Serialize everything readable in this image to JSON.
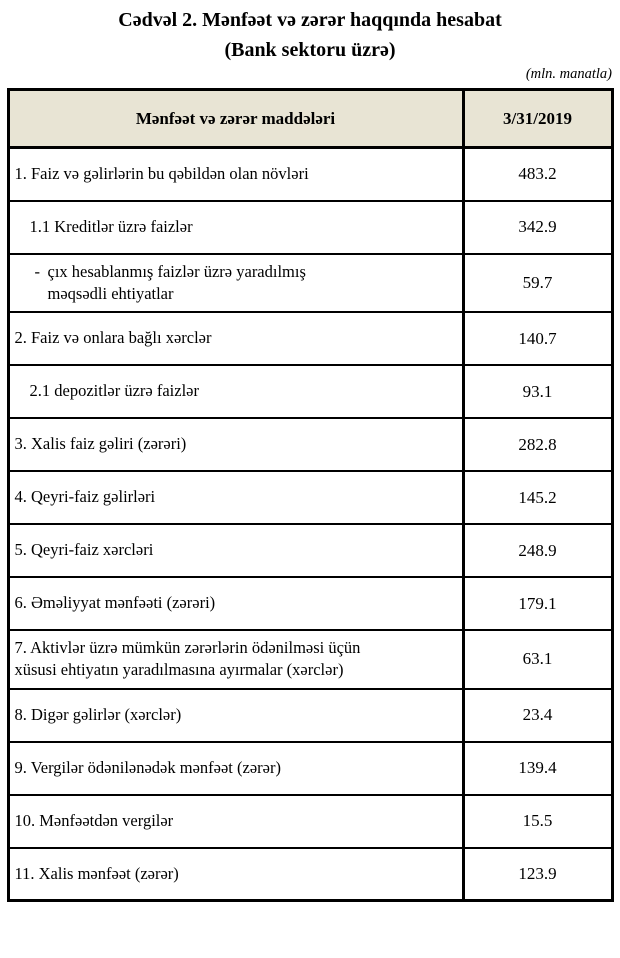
{
  "title": {
    "line1": "Cədvəl 2. Mənfəət və zərər haqqında hesabat",
    "line2": "(Bank sektoru üzrə)"
  },
  "unit_note": "(mln. manatla)",
  "table": {
    "columns": [
      "Mənfəət və zərər maddələri",
      "3/31/2019"
    ],
    "rows": [
      {
        "label": "1. Faiz və gəlirlərin bu qəbildən olan növləri",
        "value": "483.2",
        "indent": 0
      },
      {
        "label": "1.1 Kreditlər üzrə faizlər",
        "value": "342.9",
        "indent": 1
      },
      {
        "dash": "-",
        "label": "çıx hesablanmış faizlər üzrə yaradılmış\nməqsədli ehtiyatlar",
        "value": "59.7",
        "indent": 2
      },
      {
        "label": "2. Faiz və onlara bağlı xərclər",
        "value": "140.7",
        "indent": 0
      },
      {
        "label": "2.1 depozitlər üzrə faizlər",
        "value": "93.1",
        "indent": 1
      },
      {
        "label": "3. Xalis faiz gəliri (zərəri)",
        "value": "282.8",
        "indent": 0
      },
      {
        "label": "4. Qeyri-faiz gəlirləri",
        "value": "145.2",
        "indent": 0
      },
      {
        "label": "5. Qeyri-faiz xərcləri",
        "value": "248.9",
        "indent": 0
      },
      {
        "label": "6. Əməliyyat mənfəəti (zərəri)",
        "value": "179.1",
        "indent": 0
      },
      {
        "label": "7. Aktivlər üzrə mümkün zərərlərin ödənilməsi üçün\nxüsusi ehtiyatın yaradılmasına ayırmalar (xərclər)",
        "value": "63.1",
        "indent": 0
      },
      {
        "label": "8. Digər gəlirlər (xərclər)",
        "value": "23.4",
        "indent": 0
      },
      {
        "label": "9. Vergilər ödənilənədək mənfəət (zərər)",
        "value": "139.4",
        "indent": 0
      },
      {
        "label": "10. Mənfəətdən vergilər",
        "value": "15.5",
        "indent": 0
      },
      {
        "label": "11. Xalis mənfəət (zərər)",
        "value": "123.9",
        "indent": 0
      }
    ]
  },
  "colors": {
    "header_bg": "#e8e4d4",
    "border": "#000000",
    "text": "#000000"
  }
}
